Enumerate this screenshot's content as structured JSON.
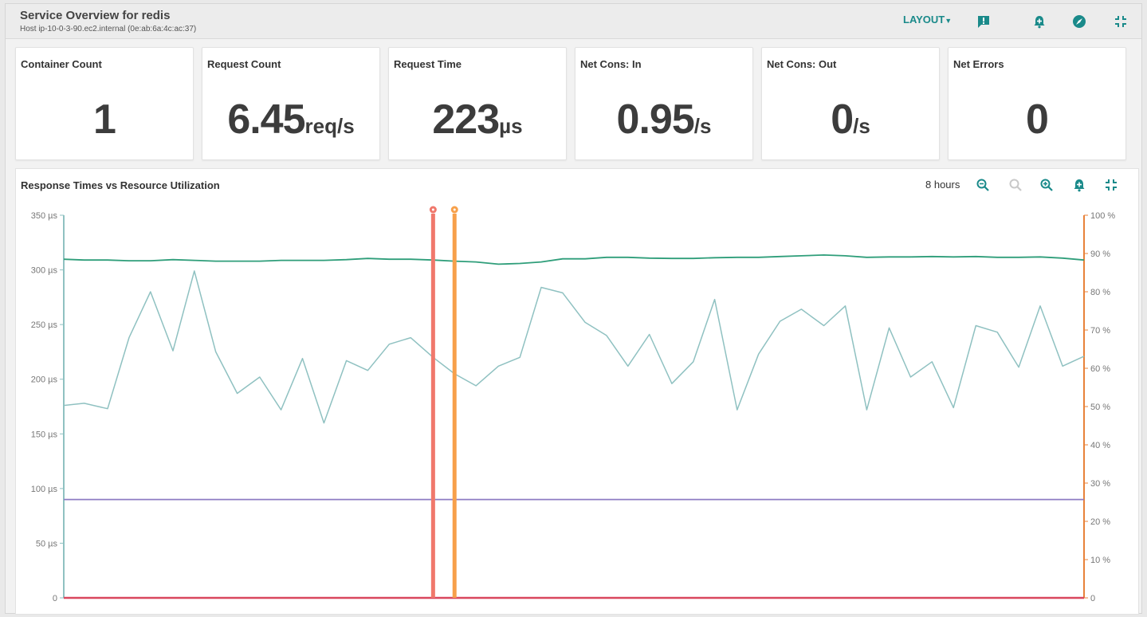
{
  "header": {
    "title": "Service Overview for redis",
    "subtitle": "Host ip-10-0-3-90.ec2.internal (0e:ab:6a:4c:ac:37)",
    "layout_label": "LAYOUT",
    "icons": [
      "comment-alert-icon",
      "bell-plus-icon",
      "rocket-icon",
      "compress-icon"
    ]
  },
  "cards": [
    {
      "label": "Container Count",
      "value": "1",
      "unit": ""
    },
    {
      "label": "Request Count",
      "value": "6.45",
      "unit": "req/s"
    },
    {
      "label": "Request Time",
      "value": "223",
      "unit": "µs"
    },
    {
      "label": "Net Cons: In",
      "value": "0.95",
      "unit": "/s"
    },
    {
      "label": "Net Cons: Out",
      "value": "0",
      "unit": "/s"
    },
    {
      "label": "Net Errors",
      "value": "0",
      "unit": ""
    }
  ],
  "chart_panel": {
    "title": "Response Times vs Resource Utilization",
    "range_label": "8 hours",
    "icons": [
      "zoom-out-icon",
      "zoom-reset-icon",
      "zoom-in-icon",
      "bell-plus-icon",
      "compress-icon"
    ]
  },
  "chart_data": {
    "type": "line",
    "colors": {
      "response_time": "#8fc1c1",
      "utilization_top": "#2f9e7a",
      "utilization_flat": "#8e7cc3",
      "baseline": "#d9475e",
      "event_red": "#f0786c",
      "event_orange": "#f7a04a",
      "left_axis": "#8fc1c1",
      "right_axis": "#e8823a"
    },
    "left_axis": {
      "ticks": [
        "0",
        "50 µs",
        "100 µs",
        "150 µs",
        "200 µs",
        "250 µs",
        "300 µs",
        "350 µs"
      ],
      "range": [
        0,
        350
      ]
    },
    "right_axis": {
      "ticks": [
        "0",
        "10 %",
        "20 %",
        "30 %",
        "40 %",
        "50 %",
        "60 %",
        "70 %",
        "80 %",
        "90 %",
        "100 %"
      ],
      "range": [
        0,
        100
      ]
    },
    "x_range": [
      0,
      100
    ],
    "series": [
      {
        "key": "response_time",
        "axis": "left",
        "x": [
          0,
          2,
          4.3,
          6.4,
          8.5,
          10.7,
          12.8,
          14.9,
          17.0,
          19.2,
          21.3,
          23.4,
          25.5,
          27.7,
          29.8,
          31.9,
          34.0,
          36.2,
          38.3,
          40.4,
          42.6,
          44.7,
          46.8,
          48.9,
          51.1,
          53.2,
          55.3,
          57.4,
          59.6,
          61.7,
          63.8,
          66.0,
          68.1,
          70.2,
          72.3,
          74.5,
          76.6,
          78.7,
          80.9,
          83.0,
          85.1,
          87.2,
          89.4,
          91.5,
          93.6,
          95.7,
          97.9,
          100
        ],
        "values": [
          176,
          178,
          173,
          238,
          280,
          226,
          299,
          225,
          187,
          202,
          172,
          219,
          160,
          217,
          208,
          232,
          238,
          220,
          205,
          194,
          212,
          220,
          284,
          279,
          252,
          240,
          212,
          241,
          196,
          216,
          273,
          172,
          223,
          253,
          264,
          249,
          267,
          172,
          247,
          202,
          216,
          174,
          249,
          243,
          211,
          267,
          212,
          221
        ]
      },
      {
        "key": "utilization_top",
        "axis": "right",
        "x": [
          0,
          2,
          4.3,
          6.4,
          8.5,
          10.7,
          12.8,
          14.9,
          17.0,
          19.2,
          21.3,
          23.4,
          25.5,
          27.7,
          29.8,
          31.9,
          34.0,
          36.2,
          38.3,
          40.4,
          42.6,
          44.7,
          46.8,
          48.9,
          51.1,
          53.2,
          55.3,
          57.4,
          59.6,
          61.7,
          63.8,
          66.0,
          68.1,
          70.2,
          72.3,
          74.5,
          76.6,
          78.7,
          80.9,
          83.0,
          85.1,
          87.2,
          89.4,
          91.5,
          93.6,
          95.7,
          97.9,
          100
        ],
        "values": [
          88.5,
          88.3,
          88.3,
          88.1,
          88.1,
          88.4,
          88.2,
          88.0,
          88.0,
          88.0,
          88.2,
          88.2,
          88.2,
          88.4,
          88.7,
          88.5,
          88.5,
          88.3,
          88.0,
          87.8,
          87.2,
          87.4,
          87.8,
          88.6,
          88.6,
          89.0,
          89.0,
          88.8,
          88.7,
          88.7,
          88.9,
          89.0,
          89.0,
          89.2,
          89.4,
          89.6,
          89.4,
          89.0,
          89.1,
          89.1,
          89.2,
          89.1,
          89.2,
          89.0,
          89.0,
          89.1,
          88.8,
          88.3
        ]
      },
      {
        "key": "utilization_flat",
        "axis": "left",
        "x": [
          0,
          100
        ],
        "values": [
          90,
          90
        ]
      },
      {
        "key": "baseline",
        "axis": "left",
        "x": [
          0,
          100
        ],
        "values": [
          0,
          0
        ]
      }
    ],
    "events": [
      {
        "key": "event_red",
        "x": 36.2
      },
      {
        "key": "event_orange",
        "x": 38.3
      }
    ],
    "grid": false,
    "legend": "none"
  }
}
